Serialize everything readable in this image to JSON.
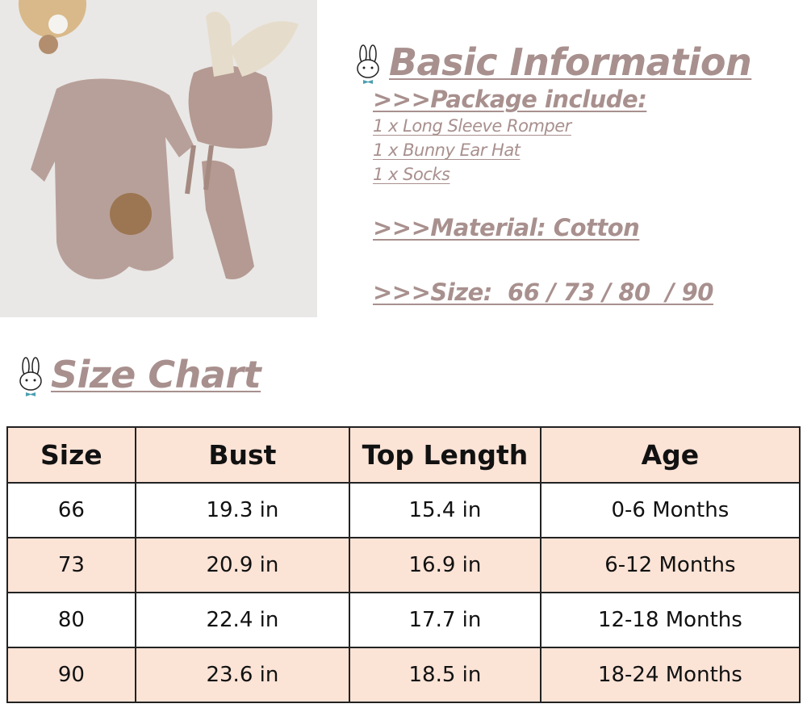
{
  "basic_info": {
    "title": "Basic Information",
    "package_heading": ">>>Package include:",
    "package_items": [
      "1 x Long Sleeve Romper",
      "1 x Bunny Ear Hat",
      "1 x Socks"
    ],
    "material": ">>>Material: Cotton",
    "size": ">>>Size:  66 / 73 / 80  / 90"
  },
  "size_chart": {
    "title": "Size Chart",
    "headers": [
      "Size",
      "Bust",
      "Top Length",
      "Age"
    ],
    "rows": [
      [
        "66",
        "19.3 in",
        "15.4 in",
        "0-6 Months"
      ],
      [
        "73",
        "20.9 in",
        "16.9 in",
        "6-12 Months"
      ],
      [
        "80",
        "22.4 in",
        "17.7 in",
        "12-18 Months"
      ],
      [
        "90",
        "23.6 in",
        "18.5 in",
        "18-24 Months"
      ]
    ]
  },
  "colors": {
    "heading": "#a8908e",
    "table_highlight": "#fbe3d6",
    "product": "#b49a92"
  }
}
